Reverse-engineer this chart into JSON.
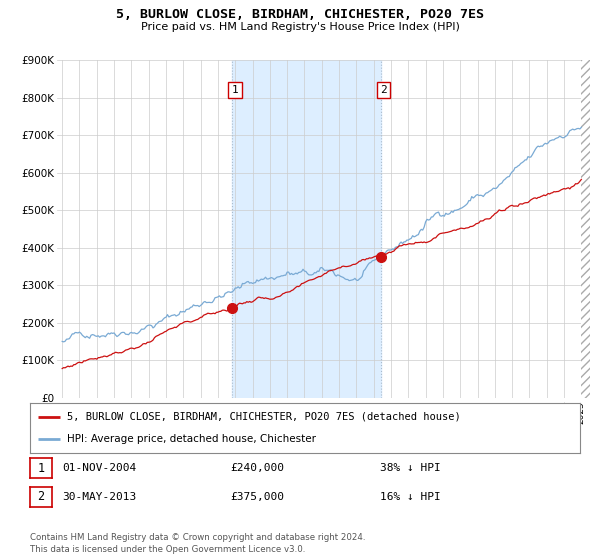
{
  "title": "5, BURLOW CLOSE, BIRDHAM, CHICHESTER, PO20 7ES",
  "subtitle": "Price paid vs. HM Land Registry's House Price Index (HPI)",
  "y_ticks": [
    0,
    100000,
    200000,
    300000,
    400000,
    500000,
    600000,
    700000,
    800000,
    900000
  ],
  "y_tick_labels": [
    "£0",
    "£100K",
    "£200K",
    "£300K",
    "£400K",
    "£500K",
    "£600K",
    "£700K",
    "£800K",
    "£900K"
  ],
  "transaction1_year": 2004.84,
  "transaction1_price": 240000,
  "transaction1_label": "1",
  "transaction1_date": "01-NOV-2004",
  "transaction1_amount": "£240,000",
  "transaction1_pct": "38% ↓ HPI",
  "transaction2_year": 2013.41,
  "transaction2_price": 375000,
  "transaction2_label": "2",
  "transaction2_date": "30-MAY-2013",
  "transaction2_amount": "£375,000",
  "transaction2_pct": "16% ↓ HPI",
  "hpi_line_color": "#7aaad4",
  "price_line_color": "#cc1111",
  "shaded_color": "#ddeeff",
  "vline_color": "#aabbcc",
  "legend_label1": "5, BURLOW CLOSE, BIRDHAM, CHICHESTER, PO20 7ES (detached house)",
  "legend_label2": "HPI: Average price, detached house, Chichester",
  "footer_line1": "Contains HM Land Registry data © Crown copyright and database right 2024.",
  "footer_line2": "This data is licensed under the Open Government Licence v3.0.",
  "grid_color": "#cccccc",
  "box_edge_color": "#cc0000"
}
